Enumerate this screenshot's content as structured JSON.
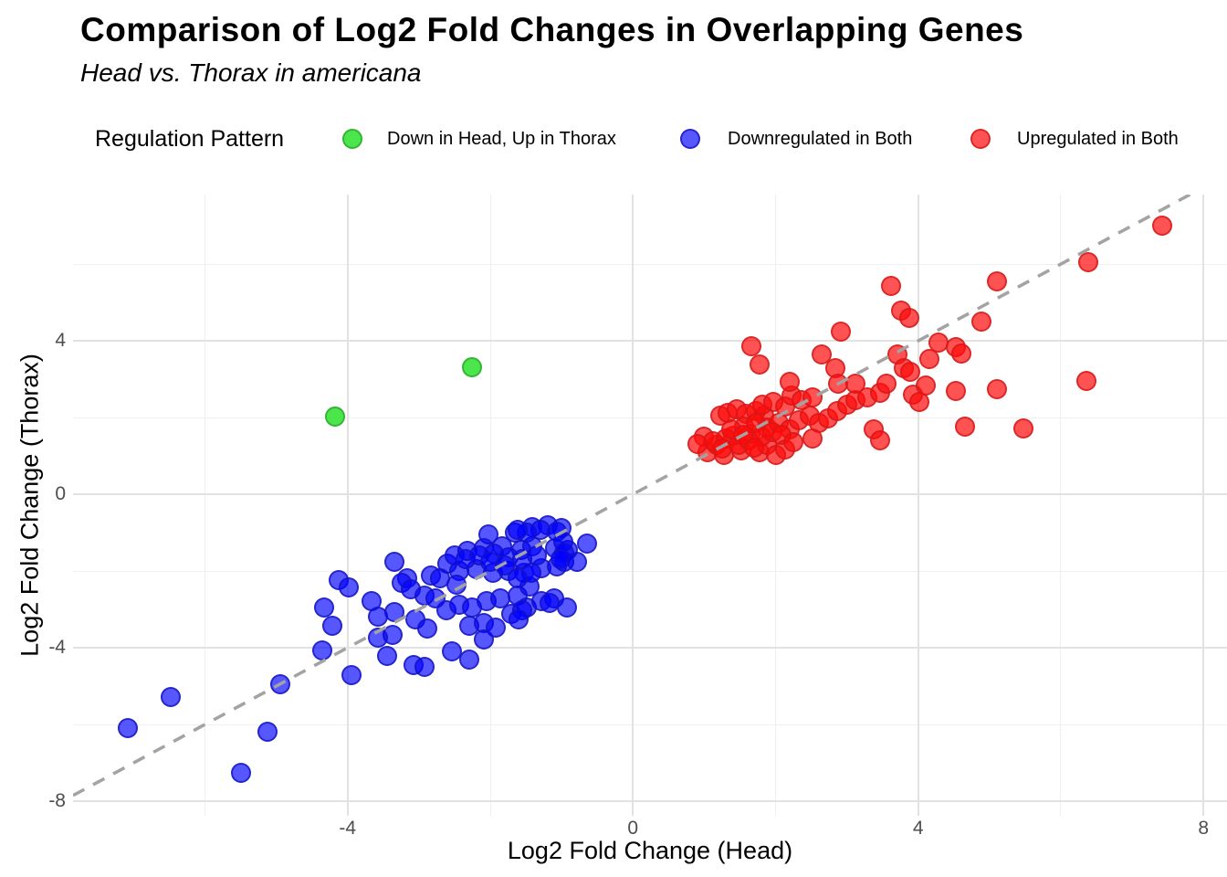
{
  "title": "Comparison of Log2 Fold Changes in Overlapping Genes",
  "subtitle": "Head vs. Thorax in americana",
  "legend": {
    "title": "Regulation Pattern",
    "items": [
      {
        "label": "Down in Head, Up in Thorax",
        "fill": "rgba(30,224,30,0.8)",
        "border": "#35b435"
      },
      {
        "label": "Downregulated in Both",
        "fill": "rgba(0,0,255,0.66)",
        "border": "rgba(20,20,190,0.75)"
      },
      {
        "label": "Upregulated in Both",
        "fill": "rgba(255,10,10,0.7)",
        "border": "rgba(210,25,25,0.75)"
      }
    ]
  },
  "chart_data": {
    "type": "scatter",
    "title": "Comparison of Log2 Fold Changes in Overlapping Genes",
    "subtitle": "Head vs. Thorax in americana",
    "xlabel": "Log2 Fold Change (Head)",
    "ylabel": "Log2 Fold Change (Thorax)",
    "xlim": [
      -7.85,
      8.33
    ],
    "ylim": [
      -8.38,
      7.81
    ],
    "x_ticks": [
      -4,
      0,
      4,
      8
    ],
    "y_ticks": [
      4,
      0,
      -4,
      -8
    ],
    "x_minor_ticks": [
      -6,
      -2,
      2,
      6
    ],
    "y_minor_ticks": [
      6,
      2,
      -2,
      -6
    ],
    "grid": true,
    "legend_position": "top",
    "reference_line": {
      "kind": "identity y=x",
      "style": "dashed",
      "color": "#a3a3a3"
    },
    "series": [
      {
        "name": "Downregulated in Both",
        "color": "blue",
        "points": [
          [
            -3.34,
            -1.76
          ],
          [
            -2.02,
            -1.05
          ],
          [
            -1.66,
            -1.0
          ],
          [
            -1.41,
            -0.85
          ],
          [
            -1.19,
            -0.81
          ],
          [
            -1.0,
            -0.88
          ],
          [
            -2.32,
            -1.48
          ],
          [
            -2.09,
            -1.4
          ],
          [
            -1.83,
            -1.36
          ],
          [
            -1.57,
            -1.45
          ],
          [
            -1.41,
            -1.36
          ],
          [
            -1.09,
            -1.4
          ],
          [
            -0.91,
            -1.45
          ],
          [
            -2.6,
            -1.81
          ],
          [
            -2.43,
            -2.0
          ],
          [
            -2.19,
            -1.95
          ],
          [
            -1.96,
            -2.05
          ],
          [
            -1.74,
            -2.0
          ],
          [
            -1.53,
            -2.05
          ],
          [
            -1.28,
            -1.93
          ],
          [
            -1.06,
            -1.88
          ],
          [
            -0.96,
            -1.76
          ],
          [
            -3.17,
            -2.19
          ],
          [
            -2.83,
            -2.12
          ],
          [
            -4.13,
            -2.24
          ],
          [
            -3.98,
            -2.43
          ],
          [
            -4.33,
            -2.95
          ],
          [
            -4.22,
            -3.43
          ],
          [
            -3.66,
            -2.79
          ],
          [
            -3.58,
            -3.19
          ],
          [
            -3.34,
            -3.07
          ],
          [
            -3.24,
            -2.31
          ],
          [
            -3.11,
            -2.48
          ],
          [
            -2.92,
            -2.64
          ],
          [
            -2.77,
            -2.71
          ],
          [
            -3.05,
            -3.26
          ],
          [
            -2.88,
            -3.5
          ],
          [
            -3.37,
            -3.67
          ],
          [
            -3.58,
            -3.74
          ],
          [
            -2.62,
            -3.02
          ],
          [
            -2.43,
            -2.88
          ],
          [
            -2.25,
            -2.95
          ],
          [
            -2.05,
            -2.79
          ],
          [
            -1.86,
            -2.71
          ],
          [
            -1.61,
            -2.64
          ],
          [
            -2.3,
            -3.43
          ],
          [
            -2.09,
            -3.36
          ],
          [
            -1.92,
            -3.48
          ],
          [
            -1.7,
            -3.12
          ],
          [
            -1.49,
            -2.95
          ],
          [
            -1.28,
            -2.79
          ],
          [
            -1.1,
            -2.71
          ],
          [
            -0.93,
            -2.95
          ],
          [
            -4.35,
            -4.07
          ],
          [
            -3.95,
            -4.71
          ],
          [
            -3.45,
            -4.21
          ],
          [
            -3.07,
            -4.45
          ],
          [
            -2.92,
            -4.5
          ],
          [
            -2.54,
            -4.1
          ],
          [
            -2.29,
            -4.31
          ],
          [
            -2.09,
            -3.79
          ],
          [
            -6.48,
            -5.29
          ],
          [
            -7.08,
            -6.1
          ],
          [
            -4.94,
            -4.95
          ],
          [
            -5.12,
            -6.19
          ],
          [
            -5.5,
            -7.26
          ],
          [
            -1.29,
            -0.93
          ],
          [
            -1.06,
            -0.98
          ],
          [
            -0.97,
            -1.24
          ],
          [
            -0.96,
            -1.52
          ],
          [
            -1.02,
            -1.69
          ],
          [
            -1.49,
            -1.0
          ],
          [
            -1.61,
            -0.93
          ],
          [
            -1.45,
            -2.4
          ],
          [
            -1.17,
            -2.83
          ],
          [
            -1.55,
            -3.02
          ],
          [
            -1.6,
            -3.26
          ],
          [
            -1.42,
            -2.05
          ],
          [
            -0.78,
            -1.76
          ],
          [
            -0.64,
            -1.29
          ],
          [
            -2.5,
            -1.6
          ],
          [
            -2.35,
            -1.7
          ],
          [
            -2.15,
            -1.6
          ],
          [
            -1.95,
            -1.55
          ],
          [
            -1.75,
            -1.65
          ],
          [
            -1.55,
            -1.7
          ],
          [
            -1.35,
            -1.6
          ],
          [
            -2.0,
            -1.75
          ],
          [
            -1.8,
            -1.85
          ],
          [
            -1.62,
            -2.2
          ],
          [
            -2.48,
            -2.35
          ],
          [
            -2.7,
            -2.2
          ]
        ]
      },
      {
        "name": "Upregulated in Both",
        "color": "red",
        "points": [
          [
            0.99,
            1.5
          ],
          [
            1.05,
            1.1
          ],
          [
            1.18,
            1.29
          ],
          [
            1.28,
            1.02
          ],
          [
            1.41,
            1.52
          ],
          [
            1.52,
            1.14
          ],
          [
            1.65,
            1.57
          ],
          [
            1.78,
            1.1
          ],
          [
            1.88,
            1.29
          ],
          [
            2.01,
            1.02
          ],
          [
            2.14,
            1.17
          ],
          [
            1.22,
            2.05
          ],
          [
            1.33,
            2.12
          ],
          [
            1.46,
            2.21
          ],
          [
            1.59,
            2.1
          ],
          [
            1.72,
            2.17
          ],
          [
            1.84,
            2.05
          ],
          [
            1.56,
            1.76
          ],
          [
            1.73,
            1.86
          ],
          [
            1.88,
            1.74
          ],
          [
            2.05,
            1.86
          ],
          [
            2.2,
            1.69
          ],
          [
            1.82,
            2.33
          ],
          [
            1.97,
            2.4
          ],
          [
            2.14,
            2.29
          ],
          [
            2.23,
            2.57
          ],
          [
            2.36,
            2.45
          ],
          [
            2.52,
            2.52
          ],
          [
            2.33,
            1.93
          ],
          [
            2.48,
            2.05
          ],
          [
            2.61,
            1.86
          ],
          [
            2.74,
            1.98
          ],
          [
            2.87,
            2.17
          ],
          [
            3.0,
            2.33
          ],
          [
            3.12,
            2.45
          ],
          [
            2.52,
            1.45
          ],
          [
            3.29,
            2.52
          ],
          [
            3.46,
            2.64
          ],
          [
            3.38,
            1.69
          ],
          [
            3.46,
            1.4
          ],
          [
            3.93,
            2.6
          ],
          [
            4.02,
            2.4
          ],
          [
            4.53,
            2.69
          ],
          [
            4.66,
            1.76
          ],
          [
            5.1,
            2.74
          ],
          [
            1.66,
            3.86
          ],
          [
            1.78,
            3.38
          ],
          [
            2.91,
            4.24
          ],
          [
            2.65,
            3.64
          ],
          [
            2.84,
            3.29
          ],
          [
            3.76,
            4.79
          ],
          [
            3.87,
            4.6
          ],
          [
            3.71,
            3.64
          ],
          [
            3.8,
            3.29
          ],
          [
            3.89,
            3.19
          ],
          [
            4.16,
            3.52
          ],
          [
            4.29,
            3.95
          ],
          [
            4.53,
            3.83
          ],
          [
            4.6,
            3.67
          ],
          [
            4.89,
            4.5
          ],
          [
            2.88,
            2.88
          ],
          [
            3.12,
            2.88
          ],
          [
            3.55,
            2.88
          ],
          [
            4.1,
            2.83
          ],
          [
            2.2,
            2.93
          ],
          [
            3.62,
            5.43
          ],
          [
            5.1,
            5.55
          ],
          [
            6.38,
            6.05
          ],
          [
            7.42,
            7.0
          ],
          [
            6.36,
            2.95
          ],
          [
            5.47,
            1.71
          ],
          [
            1.12,
            1.38
          ],
          [
            1.3,
            1.45
          ],
          [
            1.48,
            1.28
          ],
          [
            1.62,
            1.4
          ],
          [
            1.8,
            1.5
          ],
          [
            1.95,
            1.62
          ],
          [
            2.08,
            1.55
          ],
          [
            1.38,
            1.68
          ],
          [
            1.55,
            1.55
          ],
          [
            1.25,
            1.18
          ],
          [
            1.7,
            1.22
          ],
          [
            2.25,
            1.35
          ],
          [
            0.9,
            1.32
          ]
        ]
      },
      {
        "name": "Down in Head, Up in Thorax",
        "color": "green",
        "points": [
          [
            -4.17,
            2.02
          ],
          [
            -2.25,
            3.31
          ]
        ]
      }
    ]
  }
}
